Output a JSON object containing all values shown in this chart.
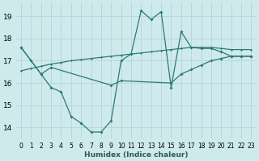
{
  "xlabel": "Humidex (Indice chaleur)",
  "background_color": "#ceeaed",
  "grid_color": "#b8d8db",
  "line_color": "#2d7a6e",
  "xlim": [
    -0.5,
    23.5
  ],
  "ylim": [
    13.5,
    19.6
  ],
  "yticks": [
    14,
    15,
    16,
    17,
    18,
    19
  ],
  "xticks": [
    0,
    1,
    2,
    3,
    4,
    5,
    6,
    7,
    8,
    9,
    10,
    11,
    12,
    13,
    14,
    15,
    16,
    17,
    18,
    19,
    20,
    21,
    22,
    23
  ],
  "line1_x": [
    0,
    1,
    2,
    3,
    4,
    5,
    6,
    7,
    8,
    9,
    10,
    11,
    12,
    13,
    14,
    15,
    16,
    17,
    18,
    19,
    20,
    21,
    22,
    23
  ],
  "line1_y": [
    17.6,
    17.0,
    16.4,
    15.8,
    15.6,
    14.5,
    14.2,
    13.8,
    13.8,
    14.3,
    17.0,
    17.3,
    19.25,
    18.85,
    19.2,
    15.8,
    18.3,
    17.6,
    17.55,
    17.55,
    17.4,
    17.2,
    17.2,
    17.2
  ],
  "line2_x": [
    0,
    1,
    2,
    3,
    4,
    5,
    6,
    7,
    8,
    9,
    10,
    11,
    12,
    13,
    14,
    15,
    16,
    17,
    18,
    19,
    20,
    21,
    22,
    23
  ],
  "line2_y": [
    16.55,
    16.65,
    16.75,
    16.85,
    16.92,
    17.0,
    17.05,
    17.1,
    17.15,
    17.2,
    17.25,
    17.3,
    17.35,
    17.4,
    17.45,
    17.5,
    17.55,
    17.6,
    17.6,
    17.6,
    17.55,
    17.5,
    17.5,
    17.5
  ],
  "line3_x": [
    0,
    2,
    3,
    9,
    10,
    15,
    16,
    17,
    18,
    19,
    20,
    21,
    22,
    23
  ],
  "line3_y": [
    17.6,
    16.4,
    16.7,
    15.9,
    16.1,
    16.0,
    16.4,
    16.6,
    16.8,
    17.0,
    17.1,
    17.2,
    17.2,
    17.2
  ]
}
